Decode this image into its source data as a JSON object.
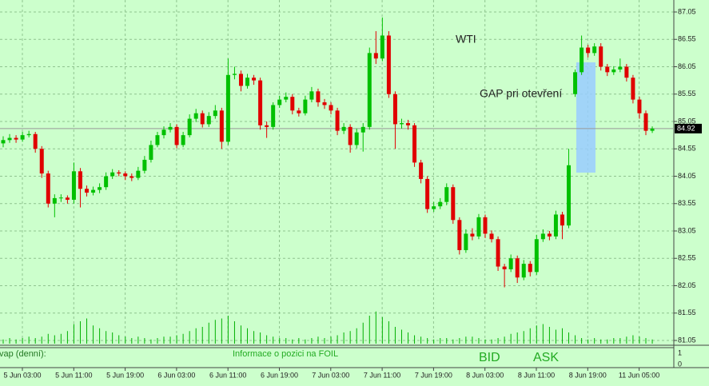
{
  "chart_data": {
    "type": "candlestick",
    "title": "WTI",
    "annotation": "GAP pri otevření",
    "ylim": [
      81.05,
      87.05
    ],
    "yticks": [
      {
        "value": 87.05,
        "label": "87.05"
      },
      {
        "value": 86.55,
        "label": "86.55"
      },
      {
        "value": 86.05,
        "label": "86.05"
      },
      {
        "value": 85.55,
        "label": "85.55"
      },
      {
        "value": 85.05,
        "label": "85.05"
      },
      {
        "value": 84.55,
        "label": "84.55"
      },
      {
        "value": 84.05,
        "label": "84.05"
      },
      {
        "value": 83.55,
        "label": "83.55"
      },
      {
        "value": 83.05,
        "label": "83.05"
      },
      {
        "value": 82.55,
        "label": "82.55"
      },
      {
        "value": 82.05,
        "label": "82.05"
      },
      {
        "value": 81.55,
        "label": "81.55"
      },
      {
        "value": 81.05,
        "label": "81.05"
      }
    ],
    "last_price": 84.92,
    "grid": true,
    "x_labels": [
      "5 Jun 03:00",
      "5 Jun 11:00",
      "5 Jun 19:00",
      "6 Jun 03:00",
      "6 Jun 11:00",
      "6 Jun 19:00",
      "7 Jun 03:00",
      "7 Jun 11:00",
      "7 Jun 19:00",
      "8 Jun 03:00",
      "8 Jun 11:00",
      "8 Jun 19:00",
      "11 Jun 05:00"
    ],
    "up_color": "#00c000",
    "down_color": "#e00000",
    "open": [
      84.65,
      84.71,
      84.75,
      84.72,
      84.8,
      84.82,
      84.55,
      84.1,
      83.55,
      83.65,
      83.66,
      83.62,
      84.14,
      83.82,
      83.75,
      83.8,
      83.85,
      84.05,
      84.12,
      84.1,
      84.05,
      84.02,
      84.15,
      84.35,
      84.62,
      84.8,
      84.9,
      84.95,
      84.62,
      84.8,
      85.1,
      85.2,
      85.0,
      85.15,
      85.25,
      84.68,
      85.9,
      85.92,
      85.7,
      85.85,
      85.8,
      84.98,
      84.95,
      85.35,
      85.45,
      85.5,
      85.25,
      85.2,
      85.45,
      85.6,
      85.4,
      85.35,
      85.25,
      84.88,
      84.95,
      84.62,
      84.85,
      84.95,
      86.3,
      86.2,
      86.62,
      85.55,
      85.0,
      85.02,
      84.98,
      84.3,
      84.0,
      83.45,
      83.5,
      83.58,
      83.85,
      83.25,
      82.7,
      83.0,
      82.95,
      83.3,
      83.0,
      82.9,
      82.4,
      82.35,
      82.55,
      82.2,
      82.45,
      82.3,
      82.9,
      83.0,
      82.95,
      83.35,
      83.15,
      85.55,
      85.95,
      86.4,
      86.3,
      86.42,
      86.05,
      85.95,
      86.0,
      86.05,
      85.85,
      85.45,
      85.2,
      84.88
    ],
    "high": [
      84.78,
      84.82,
      84.8,
      84.86,
      84.88,
      84.86,
      84.6,
      84.15,
      83.72,
      83.72,
      83.7,
      84.3,
      84.2,
      83.88,
      83.86,
      83.92,
      84.12,
      84.18,
      84.16,
      84.14,
      84.1,
      84.22,
      84.42,
      84.7,
      84.86,
      84.96,
      85.02,
      85.0,
      84.86,
      85.18,
      85.28,
      85.25,
      85.22,
      85.35,
      85.3,
      86.2,
      86.05,
      85.98,
      85.92,
      85.9,
      85.85,
      85.05,
      85.4,
      85.52,
      85.58,
      85.55,
      85.3,
      85.52,
      85.68,
      85.65,
      85.46,
      85.4,
      85.3,
      85.02,
      85.0,
      84.92,
      85.02,
      86.4,
      86.7,
      86.95,
      86.7,
      85.6,
      85.1,
      85.08,
      85.02,
      84.35,
      84.05,
      83.58,
      83.65,
      83.92,
      83.9,
      83.3,
      83.08,
      83.1,
      83.36,
      83.35,
      83.06,
      82.95,
      82.45,
      82.62,
      82.6,
      82.52,
      82.5,
      82.98,
      83.08,
      83.05,
      83.42,
      83.4,
      84.55,
      86.0,
      86.62,
      86.45,
      86.48,
      86.48,
      86.1,
      86.06,
      86.2,
      86.1,
      85.9,
      85.5,
      85.25,
      84.96
    ],
    "low": [
      84.58,
      84.66,
      84.66,
      84.68,
      84.76,
      84.48,
      84.02,
      83.48,
      83.3,
      83.58,
      83.55,
      83.55,
      83.48,
      83.68,
      83.7,
      83.74,
      83.8,
      84.0,
      84.05,
      83.98,
      83.96,
      83.98,
      84.1,
      84.3,
      84.58,
      84.74,
      84.85,
      84.56,
      84.58,
      84.76,
      85.04,
      84.94,
      84.95,
      85.1,
      84.55,
      84.62,
      85.82,
      85.6,
      85.65,
      85.72,
      84.9,
      84.75,
      84.9,
      85.3,
      85.4,
      85.18,
      85.14,
      85.16,
      85.4,
      85.32,
      85.28,
      85.18,
      84.8,
      84.82,
      84.48,
      84.56,
      84.5,
      84.9,
      86.1,
      86.15,
      85.48,
      84.55,
      84.92,
      84.9,
      84.22,
      83.92,
      83.38,
      83.4,
      83.45,
      83.52,
      83.18,
      82.62,
      82.65,
      82.88,
      82.9,
      82.92,
      82.84,
      82.32,
      82.02,
      82.3,
      82.1,
      82.15,
      82.22,
      82.25,
      82.85,
      82.88,
      82.9,
      82.9,
      83.1,
      85.5,
      85.9,
      86.22,
      86.25,
      85.98,
      85.88,
      85.9,
      85.95,
      85.78,
      85.38,
      85.1,
      84.8,
      84.84
    ],
    "close": [
      84.71,
      84.75,
      84.72,
      84.8,
      84.82,
      84.55,
      84.1,
      83.55,
      83.65,
      83.66,
      83.62,
      84.14,
      83.82,
      83.75,
      83.8,
      83.85,
      84.05,
      84.12,
      84.1,
      84.05,
      84.02,
      84.15,
      84.35,
      84.62,
      84.8,
      84.9,
      84.95,
      84.62,
      84.8,
      85.1,
      85.2,
      85.0,
      85.15,
      85.25,
      84.68,
      85.9,
      85.92,
      85.7,
      85.85,
      85.8,
      84.98,
      84.95,
      85.35,
      85.45,
      85.5,
      85.25,
      85.2,
      85.45,
      85.6,
      85.4,
      85.35,
      85.25,
      84.88,
      84.95,
      84.62,
      84.85,
      84.95,
      86.3,
      86.2,
      86.62,
      85.55,
      85.0,
      85.02,
      84.98,
      84.3,
      84.0,
      83.45,
      83.5,
      83.58,
      83.85,
      83.25,
      82.7,
      83.0,
      82.95,
      83.3,
      83.0,
      82.9,
      82.4,
      82.35,
      82.55,
      82.2,
      82.45,
      82.3,
      82.9,
      83.0,
      82.95,
      83.35,
      83.15,
      84.25,
      85.95,
      86.4,
      86.3,
      86.42,
      86.05,
      85.95,
      86.0,
      86.05,
      85.85,
      85.45,
      85.2,
      84.88,
      84.92
    ],
    "volume_color": "#00b000",
    "volume": [
      3,
      4,
      3,
      4,
      5,
      4,
      5,
      7,
      6,
      7,
      9,
      14,
      16,
      18,
      13,
      11,
      9,
      8,
      6,
      5,
      4,
      5,
      4,
      3,
      4,
      5,
      5,
      6,
      7,
      9,
      11,
      12,
      15,
      17,
      18,
      20,
      16,
      13,
      11,
      9,
      8,
      6,
      5,
      4,
      4,
      3,
      4,
      3,
      4,
      5,
      4,
      5,
      6,
      8,
      9,
      11,
      15,
      20,
      23,
      19,
      16,
      12,
      10,
      8,
      6,
      5,
      4,
      3,
      4,
      4,
      3,
      4,
      5,
      5,
      4,
      3,
      3,
      4,
      5,
      7,
      8,
      9,
      11,
      13,
      14,
      12,
      10,
      11,
      8,
      6,
      4,
      3,
      4,
      3,
      3,
      4,
      4,
      5,
      6,
      5,
      4,
      3
    ],
    "indicator_label": "vap (denní):",
    "info_text": "Informace o pozici na FOIL",
    "buttons": [
      "BID",
      "ASK"
    ],
    "panel_ylim": [
      0,
      1
    ],
    "panel_ticks": [
      1,
      0
    ]
  }
}
